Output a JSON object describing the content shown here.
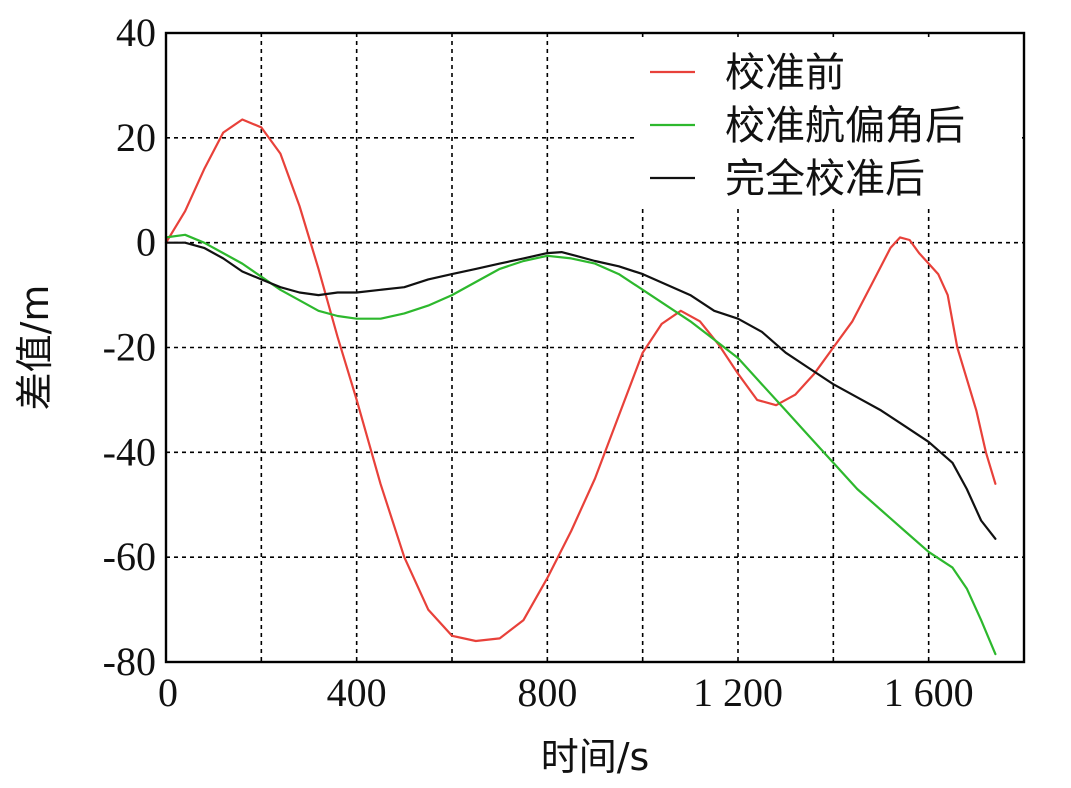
{
  "chart_data": {
    "type": "line",
    "title": "",
    "xlabel": "时间/s",
    "ylabel": "差值/m",
    "xlim": [
      0,
      1800
    ],
    "ylim": [
      -80,
      40
    ],
    "grid": true,
    "legend_position": "top-right",
    "x_ticks": [
      {
        "value": 0,
        "label": "0"
      },
      {
        "value": 400,
        "label": "400"
      },
      {
        "value": 800,
        "label": "800"
      },
      {
        "value": 1200,
        "label": "1 200"
      },
      {
        "value": 1600,
        "label": "1 600"
      }
    ],
    "x_grid": [
      200,
      400,
      600,
      800,
      1000,
      1200,
      1400,
      1600
    ],
    "y_ticks": [
      {
        "value": 40,
        "label": "40"
      },
      {
        "value": 20,
        "label": "20"
      },
      {
        "value": 0,
        "label": "0"
      },
      {
        "value": -20,
        "label": "-20"
      },
      {
        "value": -40,
        "label": "-40"
      },
      {
        "value": -60,
        "label": "-60"
      },
      {
        "value": -80,
        "label": "-80"
      }
    ],
    "series": [
      {
        "name": "校准前",
        "color": "#e8413a",
        "x": [
          0,
          40,
          80,
          120,
          160,
          200,
          240,
          280,
          320,
          360,
          400,
          450,
          500,
          550,
          600,
          650,
          700,
          750,
          800,
          850,
          900,
          950,
          1000,
          1040,
          1080,
          1120,
          1160,
          1200,
          1240,
          1280,
          1320,
          1360,
          1400,
          1440,
          1480,
          1520,
          1540,
          1560,
          1580,
          1600,
          1620,
          1640,
          1660,
          1680,
          1700,
          1720,
          1740
        ],
        "y": [
          0,
          6,
          14,
          21,
          23.5,
          22,
          17,
          7,
          -5,
          -18,
          -30,
          -46,
          -60,
          -70,
          -75,
          -76,
          -75.5,
          -72,
          -64,
          -55,
          -45,
          -33,
          -21,
          -15.5,
          -13,
          -15,
          -19.5,
          -25,
          -30,
          -31,
          -29,
          -25,
          -20,
          -15,
          -8,
          -1,
          1,
          0.5,
          -2,
          -4,
          -6,
          -10,
          -20,
          -26,
          -32,
          -40,
          -46
        ]
      },
      {
        "name": "校准航偏角后",
        "color": "#2db82d",
        "x": [
          0,
          40,
          80,
          120,
          160,
          200,
          240,
          280,
          320,
          360,
          400,
          450,
          500,
          550,
          600,
          650,
          700,
          750,
          800,
          850,
          900,
          950,
          1000,
          1050,
          1100,
          1150,
          1200,
          1250,
          1300,
          1350,
          1400,
          1450,
          1500,
          1550,
          1600,
          1650,
          1680,
          1710,
          1740
        ],
        "y": [
          1,
          1.5,
          0,
          -2,
          -4,
          -6.5,
          -9,
          -11,
          -13,
          -14,
          -14.5,
          -14.5,
          -13.5,
          -12,
          -10,
          -7.5,
          -5,
          -3.5,
          -2.5,
          -3,
          -4,
          -6,
          -9,
          -12,
          -15,
          -18.5,
          -22,
          -27,
          -32,
          -37,
          -42,
          -47,
          -51,
          -55,
          -59,
          -62,
          -66,
          -72,
          -78.5
        ]
      },
      {
        "name": "完全校准后",
        "color": "#111111",
        "x": [
          0,
          40,
          80,
          120,
          160,
          200,
          240,
          280,
          320,
          360,
          400,
          450,
          500,
          550,
          600,
          650,
          700,
          750,
          800,
          830,
          860,
          900,
          950,
          1000,
          1050,
          1100,
          1150,
          1200,
          1250,
          1300,
          1350,
          1400,
          1450,
          1500,
          1550,
          1600,
          1650,
          1680,
          1710,
          1740
        ],
        "y": [
          0,
          0,
          -1,
          -3,
          -5.5,
          -7,
          -8.5,
          -9.5,
          -10,
          -9.5,
          -9.5,
          -9,
          -8.5,
          -7,
          -6,
          -5,
          -4,
          -3,
          -2,
          -1.8,
          -2.5,
          -3.5,
          -4.5,
          -6,
          -8,
          -10,
          -13,
          -14.5,
          -17,
          -21,
          -24,
          -27,
          -29.5,
          -32,
          -35,
          -38,
          -42,
          -47,
          -53,
          -56.5
        ]
      }
    ]
  }
}
